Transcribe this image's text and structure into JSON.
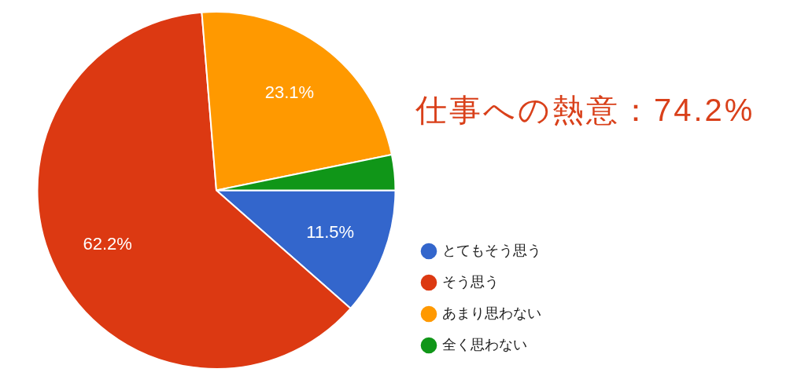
{
  "chart_data": {
    "type": "pie",
    "title": "仕事への熱意：74.2%",
    "categories": [
      "とてもそう思う",
      "そう思う",
      "あまり思わない",
      "全く思わない"
    ],
    "values": [
      11.5,
      62.2,
      23.1,
      3.2
    ],
    "colors": [
      "#3366cc",
      "#dc3912",
      "#ff9900",
      "#109618"
    ],
    "value_labels": [
      "11.5%",
      "62.2%",
      "23.1%",
      null
    ],
    "legend": "bottom right"
  }
}
